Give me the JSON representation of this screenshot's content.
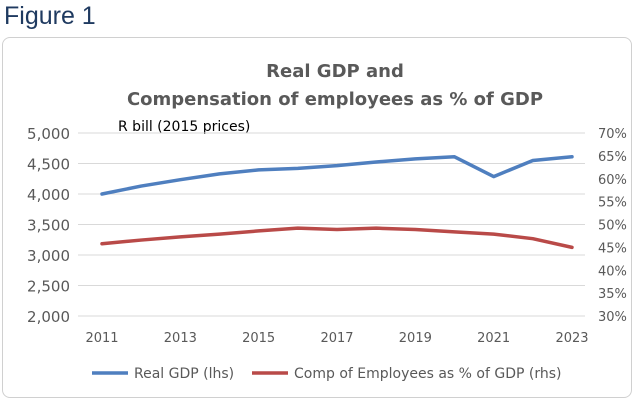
{
  "figure_label": "Figure 1",
  "chart_data": {
    "type": "line",
    "title": [
      "Real GDP and",
      "Compensation of employees as % of GDP"
    ],
    "left_axis_label": "R bill (2015 prices)",
    "x": [
      2011,
      2012,
      2013,
      2014,
      2015,
      2016,
      2017,
      2018,
      2019,
      2020,
      2021,
      2022,
      2023
    ],
    "x_tick_labels": [
      "2011",
      "2013",
      "2015",
      "2017",
      "2019",
      "2021",
      "2023"
    ],
    "ylim_left": [
      2000,
      5000
    ],
    "ylim_right": [
      30,
      70
    ],
    "y_left_ticks": [
      "2,000",
      "2,500",
      "3,000",
      "3,500",
      "4,000",
      "4,500",
      "5,000"
    ],
    "y_right_ticks": [
      "30%",
      "35%",
      "40%",
      "45%",
      "50%",
      "55%",
      "60%",
      "65%",
      "70%"
    ],
    "grid": true,
    "legend_position": "bottom",
    "series": [
      {
        "name": "Real GDP (lhs)",
        "axis": "left",
        "color": "#4f7fbf",
        "values": [
          4000,
          4130,
          4235,
          4330,
          4395,
          4420,
          4465,
          4525,
          4575,
          4610,
          4285,
          4550,
          4610
        ]
      },
      {
        "name": "Comp of Employees as % of GDP (rhs)",
        "axis": "right",
        "color": "#b94a48",
        "values": [
          45.8,
          46.6,
          47.3,
          47.9,
          48.6,
          49.2,
          48.9,
          49.2,
          48.9,
          48.4,
          47.9,
          46.9,
          45.0
        ]
      }
    ]
  }
}
